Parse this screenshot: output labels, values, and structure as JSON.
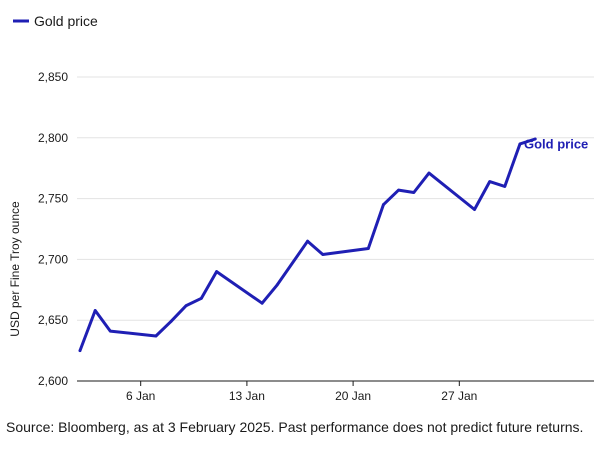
{
  "chart_data": {
    "type": "line",
    "title": "",
    "xlabel": "",
    "ylabel": "USD per Fine Troy ounce",
    "ylim": [
      2600,
      2850
    ],
    "yticks": [
      2600,
      2650,
      2700,
      2750,
      2800,
      2850
    ],
    "ytick_labels": [
      "2,600",
      "2,650",
      "2,700",
      "2,750",
      "2,800",
      "2,850"
    ],
    "xlim": [
      "2025-01-02",
      "2025-01-31"
    ],
    "xticks": [
      "2025-01-06",
      "2025-01-13",
      "2025-01-20",
      "2025-01-27"
    ],
    "xtick_labels": [
      "6 Jan",
      "13 Jan",
      "20 Jan",
      "27 Jan"
    ],
    "grid": true,
    "legend": "top-left",
    "series_color": "#1f1fb4",
    "series": [
      {
        "name": "Gold price",
        "label": "Gold price",
        "x": [
          "2025-01-02",
          "2025-01-03",
          "2025-01-04",
          "2025-01-07",
          "2025-01-08",
          "2025-01-09",
          "2025-01-10",
          "2025-01-11",
          "2025-01-14",
          "2025-01-15",
          "2025-01-17",
          "2025-01-18",
          "2025-01-21",
          "2025-01-22",
          "2025-01-23",
          "2025-01-24",
          "2025-01-25",
          "2025-01-28",
          "2025-01-29",
          "2025-01-30",
          "2025-01-31",
          "2025-02-01"
        ],
        "values": [
          2625,
          2658,
          2641,
          2637,
          2649,
          2662,
          2668,
          2690,
          2664,
          2679,
          2715,
          2704,
          2709,
          2745,
          2757,
          2755,
          2771,
          2741,
          2764,
          2760,
          2795,
          2799
        ]
      }
    ]
  },
  "footer": {
    "source": "Source: Bloomberg, as at 3 February 2025. Past performance does not predict future returns."
  }
}
